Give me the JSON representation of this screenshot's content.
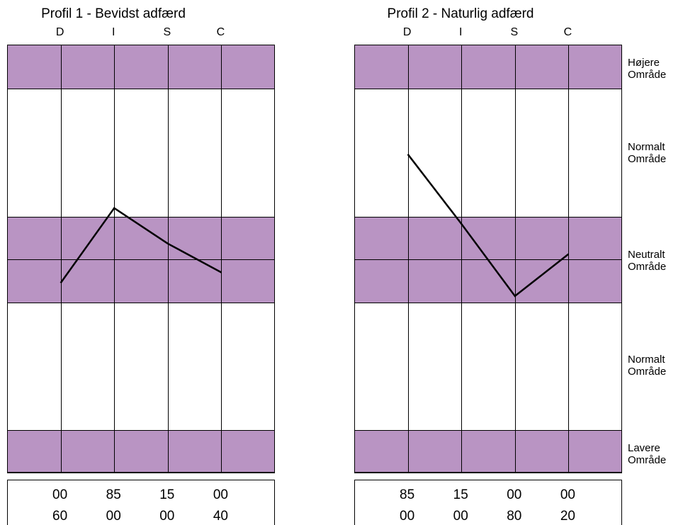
{
  "colors": {
    "band": "#b994c3",
    "line": "#000000",
    "grid": "#000000",
    "bg": "#ffffff"
  },
  "side_labels": [
    {
      "line1": "Højere",
      "line2": "Område"
    },
    {
      "line1": "Normalt",
      "line2": "Område"
    },
    {
      "line1": "Neutralt",
      "line2": "Område"
    },
    {
      "line1": "Normalt",
      "line2": "Område"
    },
    {
      "line1": "Lavere",
      "line2": "Område"
    }
  ],
  "chart_data": [
    {
      "type": "line",
      "title": "Profil 1 - Bevidst adfærd",
      "categories": [
        "D",
        "I",
        "S",
        "C"
      ],
      "values": [
        -0.18,
        0.39,
        0.12,
        -0.1
      ],
      "ylim": [
        -1.3,
        1.3
      ],
      "scores": {
        "row1": [
          "00",
          "85",
          "15",
          "00"
        ],
        "row2": [
          "60",
          "00",
          "00",
          "40"
        ]
      }
    },
    {
      "type": "line",
      "title": "Profil 2 - Naturlig adfærd",
      "categories": [
        "D",
        "I",
        "S",
        "C"
      ],
      "values": [
        0.8,
        0.27,
        -0.28,
        0.04
      ],
      "ylim": [
        -1.3,
        1.3
      ],
      "scores": {
        "row1": [
          "85",
          "15",
          "00",
          "00"
        ],
        "row2": [
          "00",
          "00",
          "80",
          "20"
        ]
      }
    }
  ]
}
